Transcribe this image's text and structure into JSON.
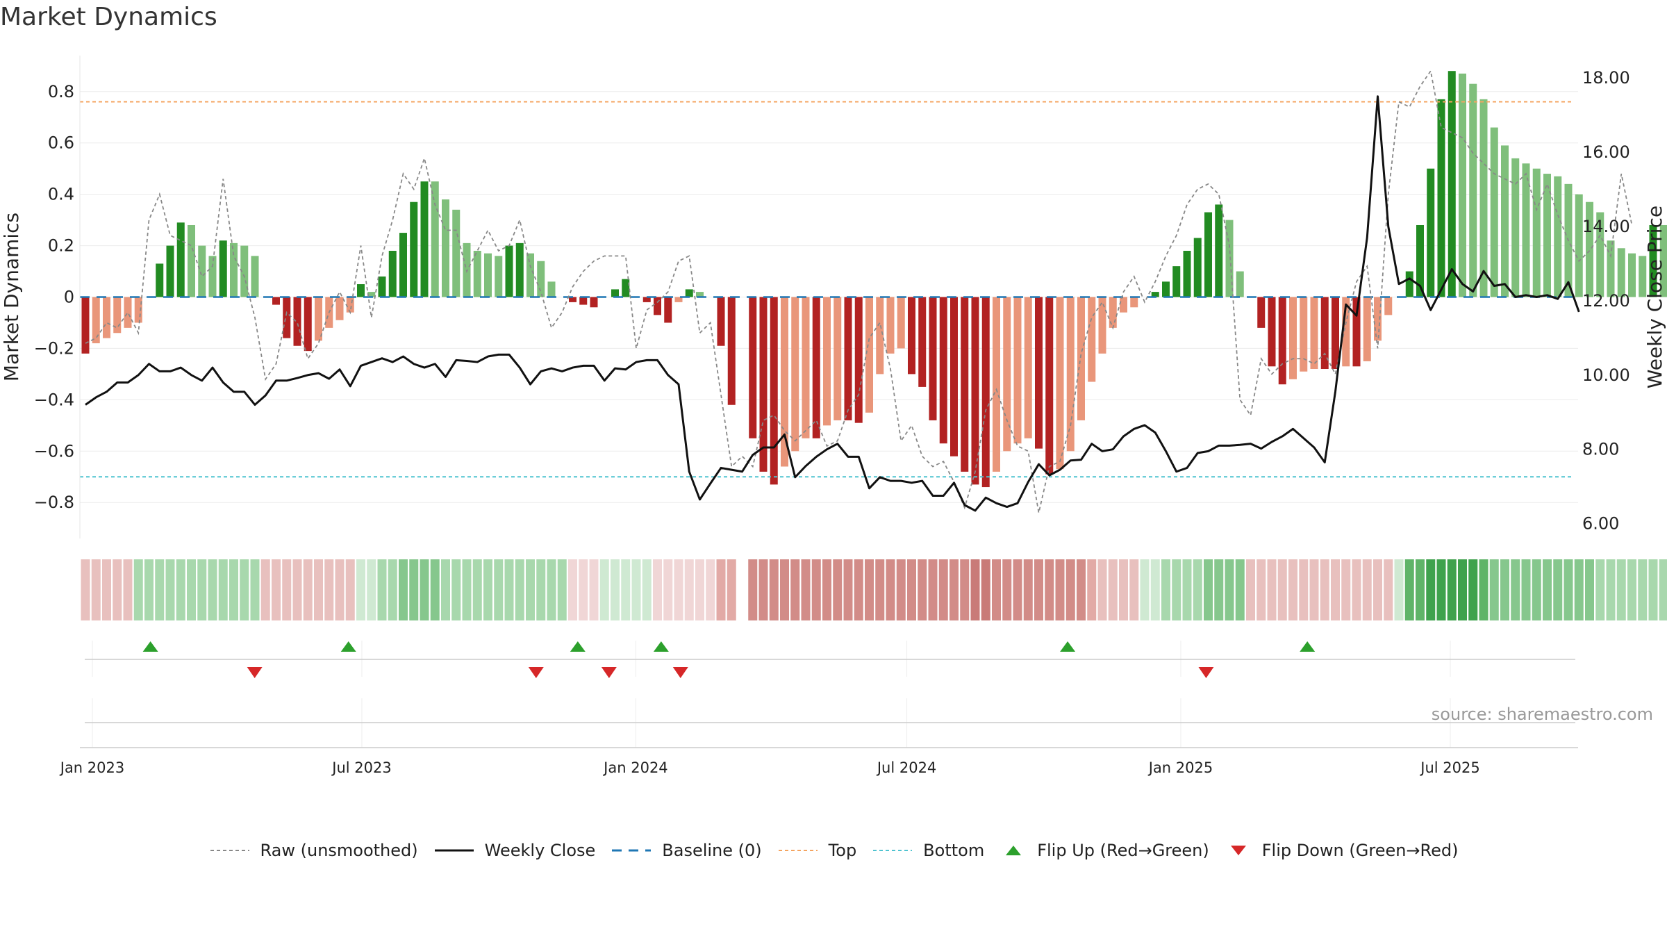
{
  "page": {
    "title": "Market Dynamics",
    "source": "source: sharemaestro.com"
  },
  "colors": {
    "up": "#228B22",
    "up_light": "#7fbf7b",
    "down": "#b22222",
    "down_light": "#e9967a",
    "raw": "#888888",
    "close": "#111111",
    "baseline": "#1f77b4",
    "top": "#f4a460",
    "bottom": "#4fc3d0",
    "flip_up": "#2ca02c",
    "flip_down": "#d62728"
  },
  "chart_data": {
    "type": "bar",
    "title": "Market Dynamics",
    "ylabel": "Market Dynamics",
    "y2label": "Weekly Close Price",
    "ylim": [
      -0.94,
      0.94
    ],
    "y2lim": [
      5.6,
      18.6
    ],
    "yticks": [
      "0.8",
      "0.6",
      "0.4",
      "0.2",
      "0",
      "−0.2",
      "−0.4",
      "−0.6",
      "−0.8"
    ],
    "y2ticks": [
      "18.00",
      "16.00",
      "14.00",
      "12.00",
      "10.00",
      "8.00",
      "6.00"
    ],
    "xticks": [
      "Jan 2023",
      "Jul 2023",
      "Jan 2024",
      "Jul 2024",
      "Jan 2025",
      "Jul 2025"
    ],
    "top_level": 0.76,
    "bottom_level": -0.7,
    "baseline": 0,
    "grid": true,
    "legend_position": "bottom-center",
    "legend": [
      "Raw (unsmoothed)",
      "Weekly Close",
      "Baseline (0)",
      "Top",
      "Bottom",
      "Flip Up (Red→Green)",
      "Flip Down (Green→Red)"
    ],
    "series": [
      {
        "name": "Market Dynamics",
        "values": [
          -0.22,
          -0.18,
          -0.16,
          -0.14,
          -0.12,
          -0.1,
          0,
          0.13,
          0.2,
          0.29,
          0.28,
          0.2,
          0.16,
          0.22,
          0.21,
          0.2,
          0.16,
          0,
          -0.03,
          -0.16,
          -0.19,
          -0.21,
          -0.17,
          -0.12,
          -0.09,
          -0.06,
          0.05,
          0.02,
          0.08,
          0.18,
          0.25,
          0.37,
          0.45,
          0.45,
          0.38,
          0.34,
          0.21,
          0.18,
          0.17,
          0.16,
          0.2,
          0.21,
          0.17,
          0.14,
          0.06,
          0,
          -0.02,
          -0.03,
          -0.04,
          0,
          0.03,
          0.07,
          0,
          -0.02,
          -0.07,
          -0.1,
          -0.02,
          0.03,
          0.02,
          0,
          -0.19,
          -0.42,
          0,
          -0.55,
          -0.68,
          -0.73,
          -0.66,
          -0.6,
          -0.55,
          -0.55,
          -0.5,
          -0.48,
          -0.48,
          -0.49,
          -0.45,
          -0.3,
          -0.22,
          -0.2,
          -0.3,
          -0.35,
          -0.48,
          -0.57,
          -0.62,
          -0.68,
          -0.73,
          -0.74,
          -0.68,
          -0.6,
          -0.57,
          -0.55,
          -0.59,
          -0.69,
          -0.67,
          -0.6,
          -0.48,
          -0.33,
          -0.22,
          -0.12,
          -0.06,
          -0.04,
          0,
          0.02,
          0.06,
          0.12,
          0.18,
          0.23,
          0.33,
          0.36,
          0.3,
          0.1,
          0,
          -0.12,
          -0.27,
          -0.34,
          -0.32,
          -0.29,
          -0.28,
          -0.28,
          -0.28,
          -0.27,
          -0.27,
          -0.25,
          -0.17,
          -0.07,
          0,
          0.1,
          0.28,
          0.5,
          0.77,
          0.88,
          0.87,
          0.83,
          0.77,
          0.66,
          0.59,
          0.54,
          0.52,
          0.5,
          0.48,
          0.47,
          0.44,
          0.4,
          0.37,
          0.33,
          0.22,
          0.19,
          0.17,
          0.16,
          0.28,
          0.28
        ]
      },
      {
        "name": "Raw (unsmoothed)",
        "values": [
          -0.18,
          -0.16,
          -0.1,
          -0.12,
          -0.06,
          -0.14,
          0.3,
          0.4,
          0.24,
          0.22,
          0.2,
          0.08,
          0.12,
          0.46,
          0.16,
          0.08,
          -0.08,
          -0.32,
          -0.26,
          -0.06,
          -0.1,
          -0.24,
          -0.18,
          -0.06,
          0.02,
          -0.06,
          0.2,
          -0.08,
          0.16,
          0.3,
          0.48,
          0.42,
          0.54,
          0.36,
          0.26,
          0.26,
          0.1,
          0.18,
          0.26,
          0.18,
          0.2,
          0.3,
          0.12,
          0.02,
          -0.12,
          -0.06,
          0.04,
          0.1,
          0.14,
          0.16,
          0.16,
          0.16,
          -0.2,
          -0.05,
          -0.02,
          0.02,
          0.14,
          0.16,
          -0.14,
          -0.1,
          -0.38,
          -0.66,
          -0.62,
          -0.66,
          -0.48,
          -0.46,
          -0.52,
          -0.56,
          -0.52,
          -0.48,
          -0.58,
          -0.56,
          -0.44,
          -0.38,
          -0.16,
          -0.1,
          -0.28,
          -0.56,
          -0.5,
          -0.62,
          -0.66,
          -0.64,
          -0.72,
          -0.82,
          -0.68,
          -0.44,
          -0.36,
          -0.48,
          -0.58,
          -0.6,
          -0.84,
          -0.66,
          -0.64,
          -0.5,
          -0.22,
          -0.08,
          -0.02,
          -0.12,
          0.02,
          0.08,
          -0.02,
          0.06,
          0.16,
          0.24,
          0.36,
          0.42,
          0.44,
          0.4,
          0.2,
          -0.4,
          -0.46,
          -0.24,
          -0.3,
          -0.26,
          -0.24,
          -0.24,
          -0.26,
          -0.22,
          -0.3,
          -0.1,
          0.06,
          0.12,
          -0.2,
          0.4,
          0.76,
          0.74,
          0.82,
          0.88,
          0.66,
          0.64,
          0.62,
          0.56,
          0.52,
          0.48,
          0.46,
          0.44,
          0.48,
          0.34,
          0.44,
          0.32,
          0.22,
          0.14,
          0.18,
          0.24,
          0.16,
          0.48,
          0.28
        ]
      }
    ],
    "close_values": [
      9.2,
      9.4,
      9.55,
      9.8,
      9.8,
      10.0,
      10.3,
      10.1,
      10.1,
      10.2,
      10.0,
      9.85,
      10.2,
      9.8,
      9.55,
      9.55,
      9.2,
      9.45,
      9.85,
      9.85,
      9.92,
      10.0,
      10.05,
      9.9,
      10.15,
      9.7,
      10.25,
      10.35,
      10.45,
      10.35,
      10.5,
      10.3,
      10.2,
      10.3,
      9.95,
      10.4,
      10.38,
      10.35,
      10.5,
      10.55,
      10.55,
      10.2,
      9.75,
      10.1,
      10.18,
      10.1,
      10.2,
      10.25,
      10.25,
      9.85,
      10.18,
      10.15,
      10.35,
      10.4,
      10.4,
      10.0,
      9.75,
      7.4,
      6.65,
      7.08,
      7.5,
      7.45,
      7.4,
      7.85,
      8.05,
      8.05,
      8.4,
      7.25,
      7.55,
      7.8,
      8.0,
      8.15,
      7.8,
      7.8,
      6.95,
      7.25,
      7.15,
      7.15,
      7.1,
      7.15,
      6.75,
      6.75,
      7.1,
      6.5,
      6.35,
      6.7,
      6.55,
      6.45,
      6.55,
      7.12,
      7.6,
      7.3,
      7.45,
      7.7,
      7.72,
      8.15,
      7.95,
      8.0,
      8.35,
      8.55,
      8.65,
      8.45,
      7.95,
      7.4,
      7.5,
      7.9,
      7.95,
      8.1,
      8.1,
      8.12,
      8.15,
      8.02,
      8.2,
      8.35,
      8.55,
      8.3,
      8.05,
      7.65,
      9.55,
      11.9,
      11.6,
      13.7,
      17.5,
      14.0,
      12.45,
      12.6,
      12.4,
      11.75,
      12.3,
      12.85,
      12.45,
      12.25,
      12.8,
      12.4,
      12.45,
      12.1,
      12.15,
      12.1,
      12.15,
      12.05,
      12.5,
      11.7
    ],
    "regime": [
      "-2",
      "-2",
      "-2",
      "-2",
      "-2",
      "+2",
      "+2",
      "+2",
      "+2",
      "+2",
      "+2",
      "+2",
      "+2",
      "+2",
      "+2",
      "+2",
      "+2",
      "-2",
      "-2",
      "-2",
      "-2",
      "-2",
      "-2",
      "-2",
      "-2",
      "-2",
      "+1",
      "+1",
      "+2",
      "+2",
      "+3",
      "+3",
      "+3",
      "+3",
      "+2",
      "+2",
      "+2",
      "+2",
      "+2",
      "+2",
      "+2",
      "+2",
      "+2",
      "+2",
      "+2",
      "+2",
      "-1",
      "-1",
      "-1",
      "+1",
      "+1",
      "+1",
      "+1",
      "+1",
      "-1",
      "-1",
      "-1",
      "-1",
      "-1",
      "-1",
      "-3",
      "-3",
      "x",
      "-4",
      "-4",
      "-4",
      "-4",
      "-4",
      "-4",
      "-4",
      "-4",
      "-4",
      "-4",
      "-4",
      "-4",
      "-4",
      "-4",
      "-4",
      "-4",
      "-4",
      "-4",
      "-4",
      "-4",
      "-4",
      "-5",
      "-5",
      "-4",
      "-4",
      "-4",
      "-4",
      "-4",
      "-4",
      "-4",
      "-4",
      "-4",
      "-3",
      "-2",
      "-2",
      "-2",
      "-2",
      "+1",
      "+1",
      "+2",
      "+2",
      "+2",
      "+2",
      "+3",
      "+3",
      "+3",
      "+3",
      "-2",
      "-2",
      "-2",
      "-2",
      "-2",
      "-2",
      "-2",
      "-2",
      "-2",
      "-2",
      "-2",
      "-2",
      "-2",
      "-2",
      "+1",
      "+4",
      "+4",
      "+5",
      "+5",
      "+5",
      "+5",
      "+5",
      "+4",
      "+3",
      "+3",
      "+3",
      "+3",
      "+3",
      "+3",
      "+3",
      "+3",
      "+3",
      "+3",
      "+2",
      "+2",
      "+2",
      "+2",
      "+2",
      "+2",
      "+2"
    ],
    "flip_up_dates": [
      "2023-02-09",
      "2023-06-22",
      "2023-11-23",
      "2024-01-18",
      "2024-10-17",
      "2025-03-27"
    ],
    "flip_down_dates": [
      "2023-04-20",
      "2023-10-26",
      "2023-12-14",
      "2024-01-31",
      "2025-01-18"
    ]
  },
  "legend_labels": {
    "raw": "Raw (unsmoothed)",
    "close": "Weekly Close",
    "baseline": "Baseline (0)",
    "top": "Top",
    "bottom": "Bottom",
    "flip_up": "Flip Up (Red→Green)",
    "flip_down": "Flip Down (Green→Red)"
  }
}
